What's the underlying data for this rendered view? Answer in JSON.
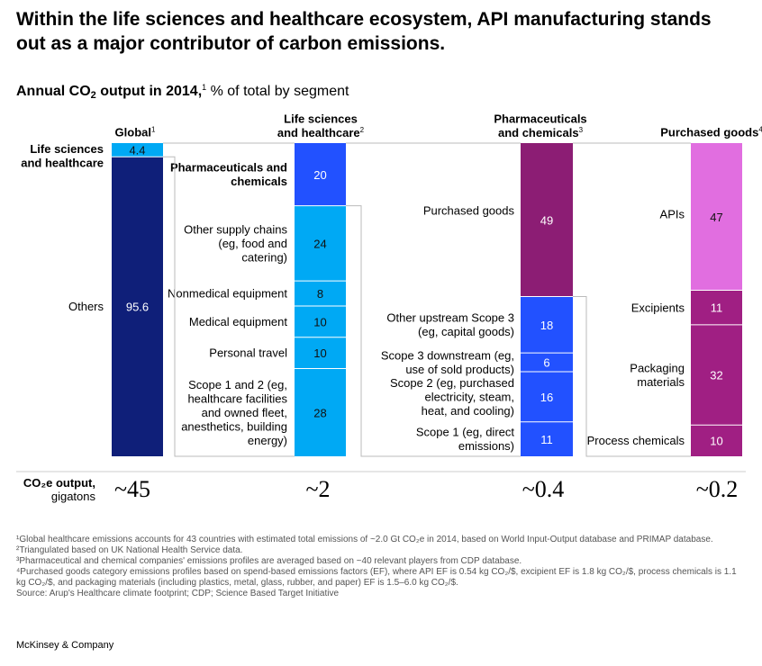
{
  "title": "Within the life sciences and healthcare ecosystem, API manufacturing stands out as a major contributor of carbon emissions.",
  "subtitle": {
    "bold_prefix": "Annual CO",
    "bold_sub": "2",
    "bold_suffix": " output in 2014,",
    "sup": "1",
    "rest": " % of total by segment"
  },
  "output_label": {
    "line1": "CO₂e output,",
    "line2": "gigatons"
  },
  "colors": {
    "navy": "#0f1f79",
    "cyan": "#00a9f4",
    "blue": "#2251ff",
    "purple": "#8c1d74",
    "pink": "#e16ee0",
    "magenta": "#a01f83"
  },
  "chart_data": {
    "type": "bar",
    "stacked": true,
    "unit": "% of total by segment",
    "columns": [
      {
        "header": "Global",
        "header_sup": "1",
        "output": "~45",
        "segments": [
          {
            "label": "Life sciences and healthcare",
            "value": 4.4,
            "value_label": "4.4",
            "color": "#00a9f4"
          },
          {
            "label": "Others",
            "value": 95.6,
            "value_label": "95.6",
            "color": "#0f1f79"
          }
        ]
      },
      {
        "header": "Life sciences and healthcare",
        "header_sup": "2",
        "output": "~2",
        "segments": [
          {
            "label": "Pharmaceuticals and chemicals",
            "value": 20,
            "value_label": "20",
            "color": "#2251ff"
          },
          {
            "label": "Other supply chains (eg, food and catering)",
            "value": 24,
            "value_label": "24",
            "color": "#00a9f4"
          },
          {
            "label": "Nonmedical equipment",
            "value": 8,
            "value_label": "8",
            "color": "#00a9f4"
          },
          {
            "label": "Medical equipment",
            "value": 10,
            "value_label": "10",
            "color": "#00a9f4"
          },
          {
            "label": "Personal travel",
            "value": 10,
            "value_label": "10",
            "color": "#00a9f4"
          },
          {
            "label": "Scope 1 and 2 (eg, healthcare facilities and owned fleet, anesthetics, building energy)",
            "value": 28,
            "value_label": "28",
            "color": "#00a9f4"
          }
        ]
      },
      {
        "header": "Pharmaceuticals and chemicals",
        "header_sup": "3",
        "output": "~0.4",
        "segments": [
          {
            "label": "Purchased goods",
            "value": 49,
            "value_label": "49",
            "color": "#8c1d74"
          },
          {
            "label": "Other upstream Scope 3 (eg, capital goods)",
            "value": 18,
            "value_label": "18",
            "color": "#2251ff"
          },
          {
            "label": "Scope 3 downstream (eg, use of sold products)",
            "value": 6,
            "value_label": "6",
            "color": "#2251ff"
          },
          {
            "label": "Scope 2 (eg, purchased electricity, steam, heat, and cooling)",
            "value": 16,
            "value_label": "16",
            "color": "#2251ff"
          },
          {
            "label": "Scope 1 (eg, direct emissions)",
            "value": 11,
            "value_label": "11",
            "color": "#2251ff"
          }
        ]
      },
      {
        "header": "Purchased goods",
        "header_sup": "4",
        "output": "~0.2",
        "segments": [
          {
            "label": "APIs",
            "value": 47,
            "value_label": "47",
            "color": "#e16ee0"
          },
          {
            "label": "Excipients",
            "value": 11,
            "value_label": "11",
            "color": "#a01f83"
          },
          {
            "label": "Packaging materials",
            "value": 32,
            "value_label": "32",
            "color": "#a01f83"
          },
          {
            "label": "Process chemicals",
            "value": 10,
            "value_label": "10",
            "color": "#a01f83"
          }
        ]
      }
    ]
  },
  "footnotes": [
    "¹Global healthcare emissions accounts for 43 countries with estimated total emissions of ~2.0 Gt CO₂e in 2014, based on World Input-Output database and PRIMAP database.",
    "²Triangulated based on UK National Health Service data.",
    "³Pharmaceutical and chemical companies' emissions profiles are averaged based on ~40 relevant players from CDP database.",
    "⁴Purchased goods category emissions profiles based on spend-based emissions factors (EF), where API EF is 0.54 kg CO₂/$, excipient EF is 1.8 kg CO₂/$, process chemicals is 1.1 kg CO₂/$, and packaging materials (including plastics, metal, glass, rubber, and paper) EF is 1.5–6.0 kg CO₂/$.",
    "Source: Arup's Healthcare climate footprint; CDP; Science Based Target Initiative"
  ],
  "brand": "McKinsey & Company"
}
